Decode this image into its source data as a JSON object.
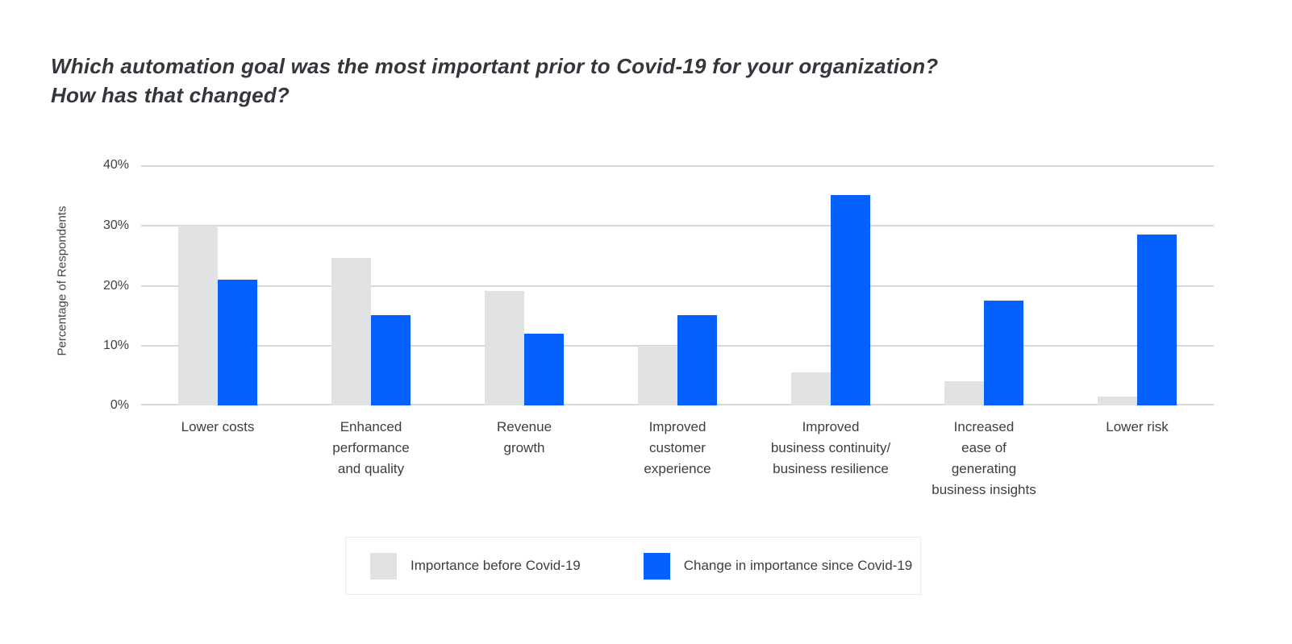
{
  "title": {
    "line1": "Which automation goal was the most important prior to Covid-19 for your organization?",
    "line2": "How has that changed?"
  },
  "y_axis": {
    "label": "Percentage of Respondents",
    "ticks": [
      "40%",
      "30%",
      "20%",
      "10%",
      "0%"
    ]
  },
  "chart_data": {
    "type": "bar",
    "title": "Which automation goal was the most important prior to Covid-19 for your organization? How has that changed?",
    "categories": [
      "Lower costs",
      "Enhanced performance and quality",
      "Revenue growth",
      "Improved customer experience",
      "Improved business continuity/ business resilience",
      "Increased ease of generating business insights",
      "Lower risk"
    ],
    "category_display": [
      "Lower costs",
      "Enhanced\nperformance\nand quality",
      "Revenue\ngrowth",
      "Improved\ncustomer\nexperience",
      "Improved\nbusiness continuity/\nbusiness resilience",
      "Increased\nease of\ngenerating\nbusiness insights",
      "Lower risk"
    ],
    "series": [
      {
        "name": "Importance before Covid-19",
        "color": "#e0e2e4",
        "values": [
          30,
          24.5,
          19,
          10,
          5.5,
          4,
          1.5
        ]
      },
      {
        "name": "Change in importance since Covid-19",
        "color": "#0561fb",
        "values": [
          21,
          15,
          12,
          15,
          35,
          17.5,
          28.5
        ]
      }
    ],
    "xlabel": "",
    "ylabel": "Percentage of Respondents",
    "ylim": [
      0,
      40
    ],
    "ytick_step": 10,
    "grid": true,
    "legend_position": "bottom"
  }
}
